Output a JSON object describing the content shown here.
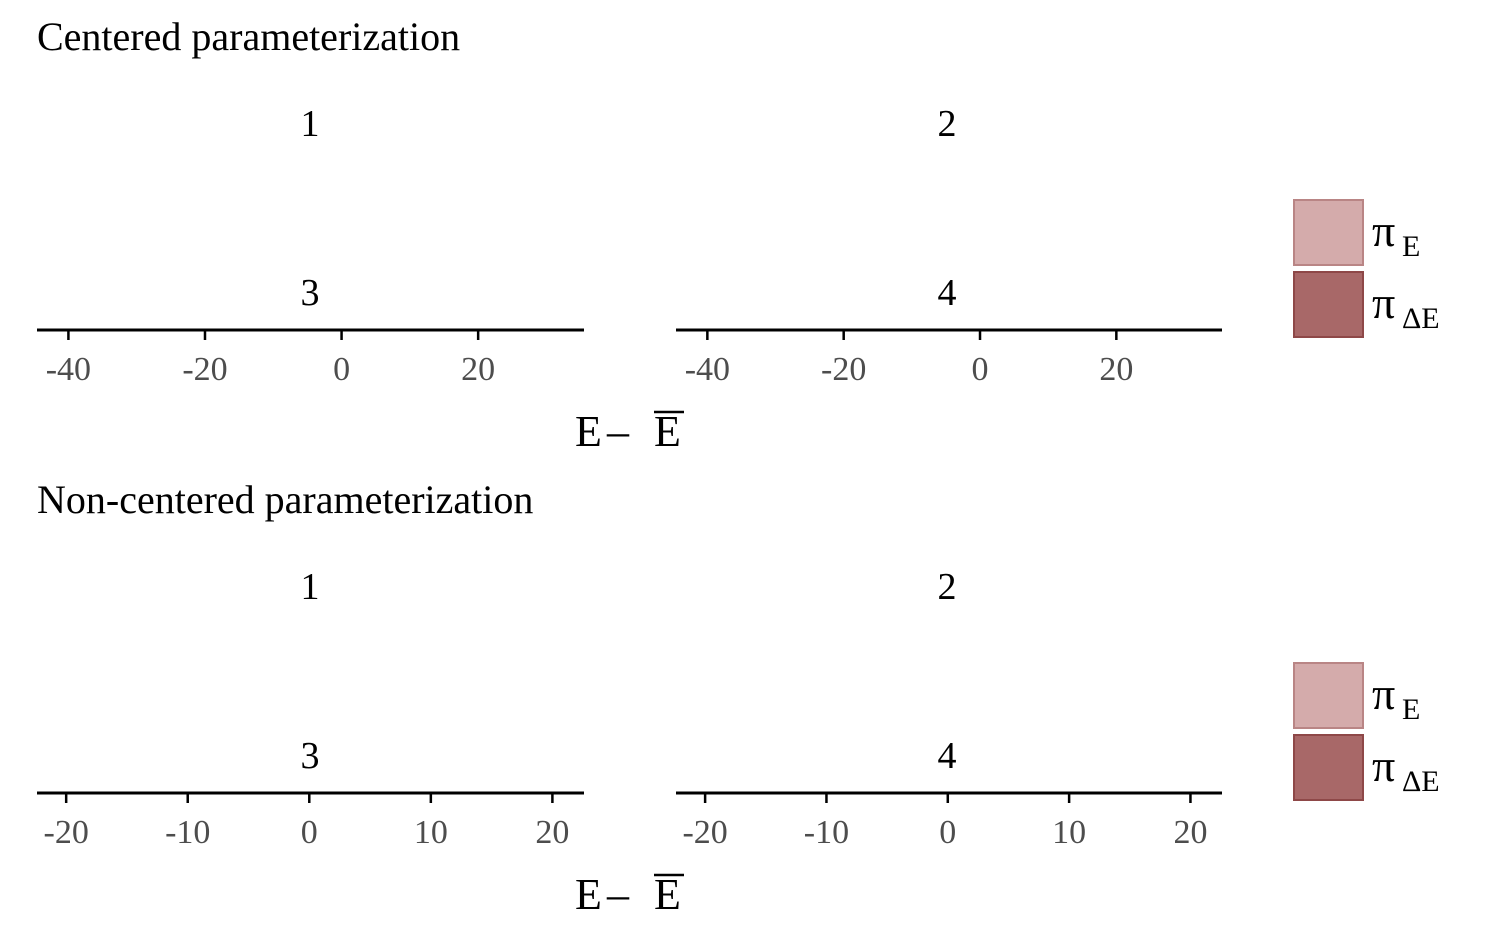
{
  "legend_colors": {
    "pi_E": "#d4abab",
    "pi_E_border": "#b98585",
    "pi_DeltaE": "#a86868",
    "pi_DeltaE_border": "#8e4848"
  },
  "chart_data": [
    {
      "type": "area",
      "title": "Centered parameterization",
      "xlabel": "E – E̅",
      "xlabel_parts": {
        "left": "E",
        "op": "–",
        "right": "E"
      },
      "panels": [
        "1",
        "2",
        "3",
        "4"
      ],
      "xticks": [
        -40,
        -20,
        0,
        20
      ],
      "xlim": [
        -44.6,
        35.5
      ],
      "legend": [
        {
          "symbol": "π",
          "subscript": "E",
          "color": "#d4abab"
        },
        {
          "symbol": "π",
          "subscript": "ΔE",
          "color": "#a86868"
        }
      ],
      "legend_position": "right",
      "grid": false,
      "series": []
    },
    {
      "type": "area",
      "title": "Non-centered parameterization",
      "xlabel": "E – E̅",
      "xlabel_parts": {
        "left": "E",
        "op": "–",
        "right": "E"
      },
      "panels": [
        "1",
        "2",
        "3",
        "4"
      ],
      "xticks": [
        -20,
        -10,
        0,
        10,
        20
      ],
      "xlim": [
        -22.4,
        22.6
      ],
      "legend": [
        {
          "symbol": "π",
          "subscript": "E",
          "color": "#d4abab"
        },
        {
          "symbol": "π",
          "subscript": "ΔE",
          "color": "#a86868"
        }
      ],
      "legend_position": "right",
      "grid": false,
      "series": []
    }
  ]
}
